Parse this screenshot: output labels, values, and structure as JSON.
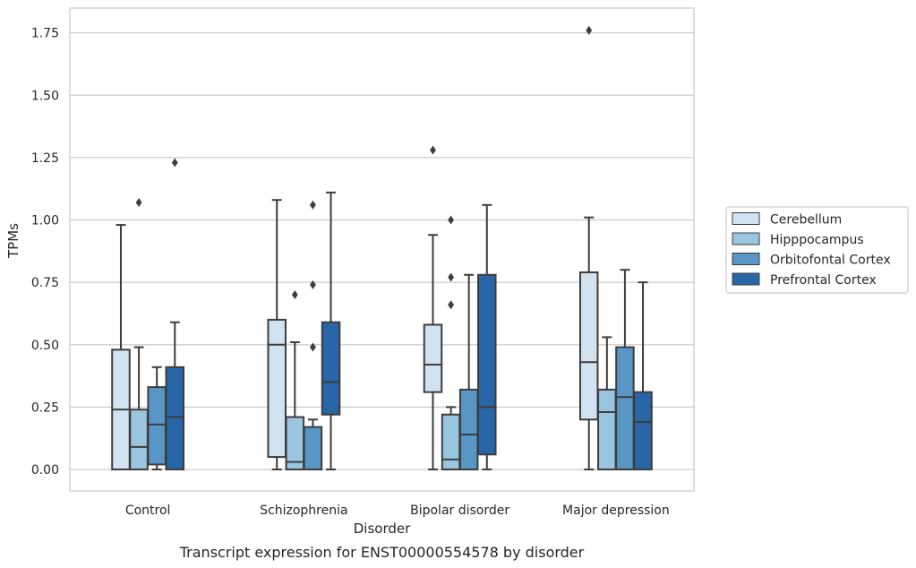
{
  "chart_data": {
    "type": "box",
    "caption": "Transcript expression for ENST00000554578 by disorder",
    "xlabel": "Disorder",
    "ylabel": "TPMs",
    "ylim": [
      -0.085,
      1.85
    ],
    "yticks": [
      0.0,
      0.25,
      0.5,
      0.75,
      1.0,
      1.25,
      1.5,
      1.75
    ],
    "ytick_labels": [
      "0.00",
      "0.25",
      "0.50",
      "0.75",
      "1.00",
      "1.25",
      "1.50",
      "1.75"
    ],
    "grid": "horizontal",
    "legend_position": "right",
    "categories": [
      "Control",
      "Schizophrenia",
      "Bipolar disorder",
      "Major depression"
    ],
    "series": [
      {
        "name": "Cerebellum",
        "color": "#d1e2f1",
        "boxes": [
          {
            "min": 0.0,
            "q1": 0.0,
            "median": 0.24,
            "q3": 0.48,
            "max": 0.98,
            "outliers": []
          },
          {
            "min": 0.0,
            "q1": 0.05,
            "median": 0.5,
            "q3": 0.6,
            "max": 1.08,
            "outliers": []
          },
          {
            "min": 0.0,
            "q1": 0.31,
            "median": 0.42,
            "q3": 0.58,
            "max": 0.94,
            "outliers": [
              1.28
            ]
          },
          {
            "min": 0.0,
            "q1": 0.2,
            "median": 0.43,
            "q3": 0.79,
            "max": 1.01,
            "outliers": [
              1.76
            ]
          }
        ]
      },
      {
        "name": "Hipppocampus",
        "color": "#9ac5df",
        "boxes": [
          {
            "min": 0.0,
            "q1": 0.0,
            "median": 0.09,
            "q3": 0.24,
            "max": 0.49,
            "outliers": [
              1.07
            ]
          },
          {
            "min": 0.0,
            "q1": 0.0,
            "median": 0.03,
            "q3": 0.21,
            "max": 0.51,
            "outliers": [
              0.7
            ]
          },
          {
            "min": 0.0,
            "q1": 0.0,
            "median": 0.04,
            "q3": 0.22,
            "max": 0.25,
            "outliers": [
              0.66,
              0.77,
              1.0
            ]
          },
          {
            "min": 0.0,
            "q1": 0.0,
            "median": 0.23,
            "q3": 0.32,
            "max": 0.53,
            "outliers": []
          }
        ]
      },
      {
        "name": "Orbitofontal Cortex",
        "color": "#5896c6",
        "boxes": [
          {
            "min": 0.0,
            "q1": 0.02,
            "median": 0.18,
            "q3": 0.33,
            "max": 0.41,
            "outliers": []
          },
          {
            "min": 0.0,
            "q1": 0.0,
            "median": 0.0,
            "q3": 0.17,
            "max": 0.2,
            "outliers": [
              0.49,
              0.74,
              1.06
            ]
          },
          {
            "min": 0.0,
            "q1": 0.0,
            "median": 0.14,
            "q3": 0.32,
            "max": 0.78,
            "outliers": []
          },
          {
            "min": 0.0,
            "q1": 0.0,
            "median": 0.29,
            "q3": 0.49,
            "max": 0.8,
            "outliers": []
          }
        ]
      },
      {
        "name": "Prefrontal Cortex",
        "color": "#2866a7",
        "boxes": [
          {
            "min": 0.0,
            "q1": 0.0,
            "median": 0.21,
            "q3": 0.41,
            "max": 0.59,
            "outliers": [
              1.23
            ]
          },
          {
            "min": 0.0,
            "q1": 0.22,
            "median": 0.35,
            "q3": 0.59,
            "max": 1.11,
            "outliers": []
          },
          {
            "min": 0.0,
            "q1": 0.06,
            "median": 0.25,
            "q3": 0.78,
            "max": 1.06,
            "outliers": []
          },
          {
            "min": 0.0,
            "q1": 0.0,
            "median": 0.19,
            "q3": 0.31,
            "max": 0.75,
            "outliers": []
          }
        ]
      }
    ]
  }
}
